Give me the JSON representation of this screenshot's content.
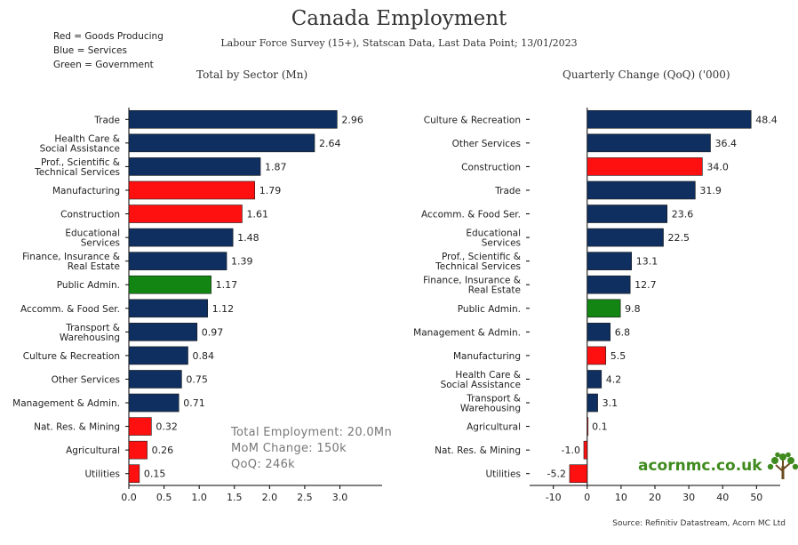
{
  "header": {
    "title": "Canada Employment",
    "subtitle": "Labour Force Survey (15+), Statscan Data, Last Data Point; 13/01/2023"
  },
  "legend_notes": [
    "Red = Goods Producing",
    "Blue = Services",
    "Green = Government"
  ],
  "colors": {
    "Services": "#0e2f5f",
    "Goods": "#ff1010",
    "Government": "#128512"
  },
  "summary": {
    "total": "Total Employment: 20.0Mn",
    "mom": "MoM Change: 150k",
    "qoq": "QoQ: 246k"
  },
  "source": "Source: Refinitiv Datastream, Acorn MC Ltd",
  "brand": {
    "name": "acornmc.co.uk",
    "icon": "tree-icon"
  },
  "chart_data": [
    {
      "type": "bar",
      "orientation": "horizontal",
      "title": "Total by Sector (Mn)",
      "xlim": [
        0,
        3.6
      ],
      "xticks": [
        "0.0",
        "0.5",
        "1.0",
        "1.5",
        "2.0",
        "2.5",
        "3.0"
      ],
      "xtick_values": [
        0,
        0.5,
        1,
        1.5,
        2,
        2.5,
        3
      ],
      "categories": [
        "Trade",
        "Health Care &\nSocial Assistance",
        "Prof., Scientific &\nTechnical Services",
        "Manufacturing",
        "Construction",
        "Educational\nServices",
        "Finance, Insurance &\nReal Estate",
        "Public Admin.",
        "Accomm. & Food Ser.",
        "Transport &\nWarehousing",
        "Culture & Recreation",
        "Other Services",
        "Management & Admin.",
        "Nat. Res. & Mining",
        "Agricultural",
        "Utilities"
      ],
      "values": [
        2.96,
        2.64,
        1.87,
        1.79,
        1.61,
        1.48,
        1.39,
        1.17,
        1.12,
        0.97,
        0.84,
        0.75,
        0.71,
        0.32,
        0.26,
        0.15
      ],
      "labels": [
        "2.96",
        "2.64",
        "1.87",
        "1.79",
        "1.61",
        "1.48",
        "1.39",
        "1.17",
        "1.12",
        "0.97",
        "0.84",
        "0.75",
        "0.71",
        "0.32",
        "0.26",
        "0.15"
      ],
      "groups": [
        "Services",
        "Services",
        "Services",
        "Goods",
        "Goods",
        "Services",
        "Services",
        "Government",
        "Services",
        "Services",
        "Services",
        "Services",
        "Services",
        "Goods",
        "Goods",
        "Goods"
      ],
      "grid": false
    },
    {
      "type": "bar",
      "orientation": "horizontal",
      "title": "Quarterly Change (QoQ) ('000)",
      "xlim": [
        -17,
        57
      ],
      "xticks": [
        "-10",
        "0",
        "10",
        "20",
        "30",
        "40",
        "50"
      ],
      "xtick_values": [
        -10,
        0,
        10,
        20,
        30,
        40,
        50
      ],
      "categories": [
        "Culture & Recreation",
        "Other Services",
        "Construction",
        "Trade",
        "Accomm. & Food Ser.",
        "Educational\nServices",
        "Prof., Scientific &\nTechnical Services",
        "Finance, Insurance &\nReal Estate",
        "Public Admin.",
        "Management & Admin.",
        "Manufacturing",
        "Health Care &\nSocial Assistance",
        "Transport &\nWarehousing",
        "Agricultural",
        "Nat. Res. & Mining",
        "Utilities"
      ],
      "values": [
        48.4,
        36.4,
        34.0,
        31.9,
        23.6,
        22.5,
        13.1,
        12.7,
        9.8,
        6.8,
        5.5,
        4.2,
        3.1,
        0.1,
        -1.0,
        -5.2
      ],
      "labels": [
        "48.4",
        "36.4",
        "34.0",
        "31.9",
        "23.6",
        "22.5",
        "13.1",
        "12.7",
        "9.8",
        "6.8",
        "5.5",
        "4.2",
        "3.1",
        "0.1",
        "-1.0",
        "-5.2"
      ],
      "groups": [
        "Services",
        "Services",
        "Goods",
        "Services",
        "Services",
        "Services",
        "Services",
        "Services",
        "Government",
        "Services",
        "Goods",
        "Services",
        "Services",
        "Goods",
        "Goods",
        "Goods"
      ],
      "grid": false
    }
  ]
}
